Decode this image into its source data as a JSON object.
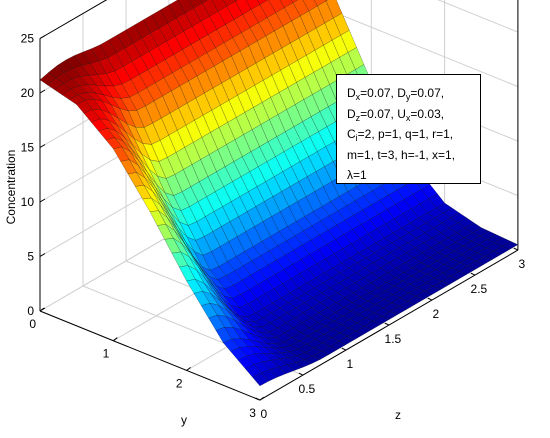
{
  "chart_data": {
    "type": "surface",
    "title": "",
    "xlabel": "z",
    "ylabel": "y",
    "zlabel": "Concentration",
    "x_range": [
      0,
      3
    ],
    "y_range": [
      0,
      3
    ],
    "z_range": [
      0,
      25
    ],
    "x_ticks": [
      "0",
      "0.5",
      "1",
      "1.5",
      "2",
      "2.5",
      "3"
    ],
    "y_ticks": [
      "0",
      "1",
      "2",
      "3"
    ],
    "z_ticks": [
      "0",
      "5",
      "10",
      "15",
      "20",
      "25"
    ],
    "grid": true,
    "colormap": "jet",
    "surface_samples": {
      "y": [
        0,
        0.5,
        1,
        1.5,
        2,
        2.5,
        3
      ],
      "concentration_at_z0": [
        21.2,
        20.3,
        17.6,
        13.2,
        8.2,
        3.9,
        1.3
      ],
      "concentration_at_z3": [
        21.2,
        16.5,
        10.0,
        4.5,
        1.6,
        0.7,
        0.5
      ]
    },
    "legend_position": "top-right",
    "parameter_box": [
      {
        "parts": [
          [
            "D",
            "x"
          ],
          [
            "=0.07, D",
            "y"
          ],
          [
            "=0.07,",
            ""
          ]
        ]
      },
      {
        "parts": [
          [
            "D",
            "z"
          ],
          [
            "=0.07, U",
            "x"
          ],
          [
            "=0.03,",
            ""
          ]
        ]
      },
      {
        "parts": [
          [
            "C",
            "i"
          ],
          [
            "=2, p=1, q=1, r=1,",
            ""
          ]
        ]
      },
      {
        "parts": [
          [
            "m=1, t=3, h=-1, x=1,",
            ""
          ]
        ]
      },
      {
        "parts": [
          [
            "λ=1",
            ""
          ]
        ]
      }
    ]
  }
}
